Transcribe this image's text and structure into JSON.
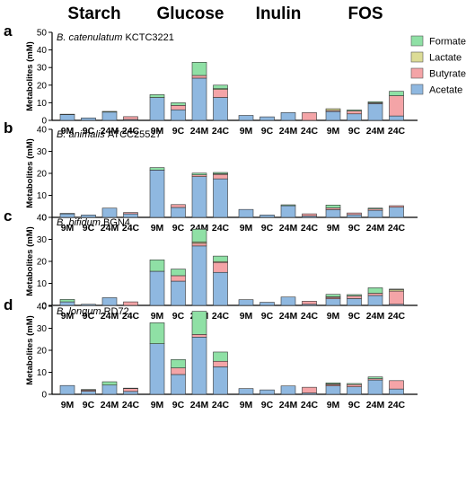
{
  "chart_data": {
    "type": "bar",
    "stacked": true,
    "group_titles": [
      "Starch",
      "Glucose",
      "Inulin",
      "FOS"
    ],
    "categories": [
      "9M",
      "9C",
      "24M",
      "24C",
      "9M",
      "9C",
      "24M",
      "24C",
      "9M",
      "9C",
      "24M",
      "24C",
      "9M",
      "9C",
      "24M",
      "24C"
    ],
    "ylabel": "Metabolites (mM)",
    "ylim": [
      0,
      50
    ],
    "yticks": [
      "0",
      "10",
      "20",
      "30",
      "40",
      "50"
    ],
    "legend": {
      "placement": "top-right",
      "items": [
        {
          "name": "Formate",
          "color": "#8fe0a5"
        },
        {
          "name": "Lactate",
          "color": "#dcdc96"
        },
        {
          "name": "Butyrate",
          "color": "#f4a4a7"
        },
        {
          "name": "Acetate",
          "color": "#8fb8e0"
        }
      ]
    },
    "panels": [
      {
        "letter": "a",
        "strain_italic": "B. catenulatum",
        "strain_id": "KCTC3221",
        "ylim": [
          0,
          50
        ],
        "series": [
          {
            "name": "Acetate",
            "values": [
              3.3,
              1.4,
              4.7,
              0.5,
              13,
              6,
              24,
              13,
              2.8,
              2,
              4.4,
              0,
              5,
              3.7,
              9.5,
              2.5
            ]
          },
          {
            "name": "Butyrate",
            "values": [
              0,
              0,
              0,
              1.6,
              0,
              2.5,
              1.5,
              4.5,
              0,
              0,
              0,
              4.4,
              0.6,
              1.6,
              0.5,
              11.5
            ]
          },
          {
            "name": "Lactate",
            "values": [
              0,
              0,
              0,
              0,
              0,
              0,
              0,
              0.5,
              0,
              0,
              0,
              0,
              1,
              0,
              0,
              0
            ]
          },
          {
            "name": "Formate",
            "values": [
              0.2,
              0,
              0.4,
              0,
              1.6,
              1.5,
              7.5,
              2,
              0,
              0,
              0,
              0,
              0,
              0.6,
              0.6,
              2.5
            ]
          }
        ]
      },
      {
        "letter": "b",
        "strain_italic": "B. animalis",
        "strain_id": "ATCC25527",
        "ylim": [
          0,
          40
        ],
        "series": [
          {
            "name": "Acetate",
            "values": [
              1.6,
              1.1,
              4.2,
              1.6,
              21.5,
              4.5,
              18.5,
              17.5,
              3.6,
              1.1,
              5.3,
              0.6,
              3.5,
              1.2,
              3.2,
              4.6
            ]
          },
          {
            "name": "Butyrate",
            "values": [
              0,
              0,
              0,
              0.6,
              0,
              1.3,
              0.8,
              2,
              0,
              0,
              0,
              1,
              0.8,
              0.8,
              0.6,
              0.7
            ]
          },
          {
            "name": "Lactate",
            "values": [
              0,
              0,
              0,
              0,
              0,
              0,
              0,
              0.3,
              0,
              0,
              0,
              0,
              0,
              0,
              0,
              0
            ]
          },
          {
            "name": "Formate",
            "values": [
              0.2,
              0,
              0,
              0,
              1.1,
              0,
              0.8,
              0.6,
              0,
              0,
              0.4,
              0,
              1.3,
              0,
              0.4,
              0
            ]
          }
        ]
      },
      {
        "letter": "c",
        "strain_italic": "B. bifidum",
        "strain_id": "BGN4",
        "ylim": [
          0,
          40
        ],
        "series": [
          {
            "name": "Acetate",
            "values": [
              1.6,
              0.5,
              3.5,
              0,
              15.5,
              11,
              27,
              15,
              2.6,
              1.4,
              3.8,
              0.5,
              3,
              3.1,
              4.5,
              0.5
            ]
          },
          {
            "name": "Butyrate",
            "values": [
              0,
              0,
              0,
              1.6,
              0,
              2.5,
              1.2,
              4.5,
              0,
              0,
              0,
              1.4,
              0.6,
              1.2,
              1,
              6
            ]
          },
          {
            "name": "Lactate",
            "values": [
              0,
              0,
              0,
              0,
              0,
              0,
              0.6,
              0.4,
              0,
              0,
              0,
              0,
              0.3,
              0,
              0,
              0.7
            ]
          },
          {
            "name": "Formate",
            "values": [
              1.1,
              0,
              0,
              0,
              5.2,
              3,
              5.8,
              2.5,
              0,
              0,
              0,
              0,
              1.1,
              0.6,
              2.5,
              0.2
            ]
          }
        ]
      },
      {
        "letter": "d",
        "strain_italic": "B. longum",
        "strain_id": "RD72",
        "ylim": [
          0,
          40
        ],
        "series": [
          {
            "name": "Acetate",
            "values": [
              4,
              1.4,
              4.2,
              1.3,
              23,
              9,
              26,
              12.5,
              2.6,
              2,
              3.8,
              0.6,
              3.8,
              3.4,
              6.5,
              2.4
            ]
          },
          {
            "name": "Butyrate",
            "values": [
              0,
              0.5,
              0,
              1.3,
              0,
              3,
              1.2,
              2.5,
              0,
              0,
              0,
              2.6,
              0.6,
              1,
              0.6,
              3.8
            ]
          },
          {
            "name": "Lactate",
            "values": [
              0,
              0,
              0,
              0,
              0,
              0,
              0,
              0,
              0,
              0,
              0,
              0,
              0.3,
              0,
              0,
              0
            ]
          },
          {
            "name": "Formate",
            "values": [
              0,
              0.3,
              1.5,
              0.2,
              9.5,
              3.8,
              10.5,
              4.2,
              0,
              0,
              0,
              0,
              0.5,
              0.5,
              0.8,
              0
            ]
          }
        ]
      }
    ]
  }
}
